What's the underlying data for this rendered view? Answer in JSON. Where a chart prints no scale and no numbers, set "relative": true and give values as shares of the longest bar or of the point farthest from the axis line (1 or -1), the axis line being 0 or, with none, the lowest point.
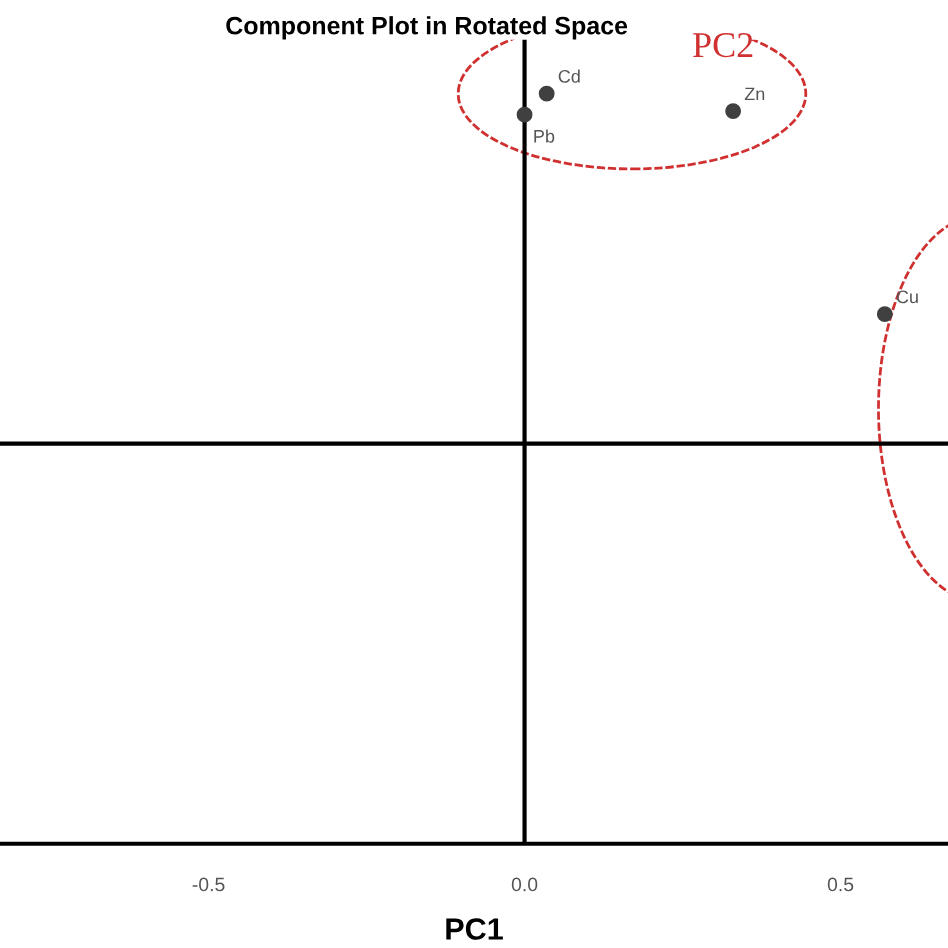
{
  "chart_data": {
    "type": "scatter",
    "title": "Component Plot in Rotated Space",
    "xlabel": "PC1",
    "relative": true,
    "series": [
      {
        "color": "#404040",
        "marker": "circle",
        "x": [
          0.035,
          0.33,
          0.0,
          0.57
        ],
        "values": [
          1,
          0.95,
          0.94,
          0.37
        ]
      }
    ],
    "xlim": [
      -0.83,
      0.67
    ],
    "xticks": [
      -0.5,
      {
        "value": 0,
        "label": "0.0"
      },
      0.5
    ],
    "ref_lines": [
      {
        "axis": "x",
        "value": 0,
        "color": "#000000"
      }
    ],
    "annotations": [
      {
        "text": "Cd",
        "x": 0.035,
        "y": 1
      },
      {
        "text": "Zn",
        "x": 0.33,
        "y": 0.95
      },
      {
        "text": "Pb",
        "x": 0.0,
        "y": 0.94
      },
      {
        "text": "Cu",
        "x": 0.57,
        "y": 0.37
      },
      "PC2"
    ],
    "grid": false
  }
}
